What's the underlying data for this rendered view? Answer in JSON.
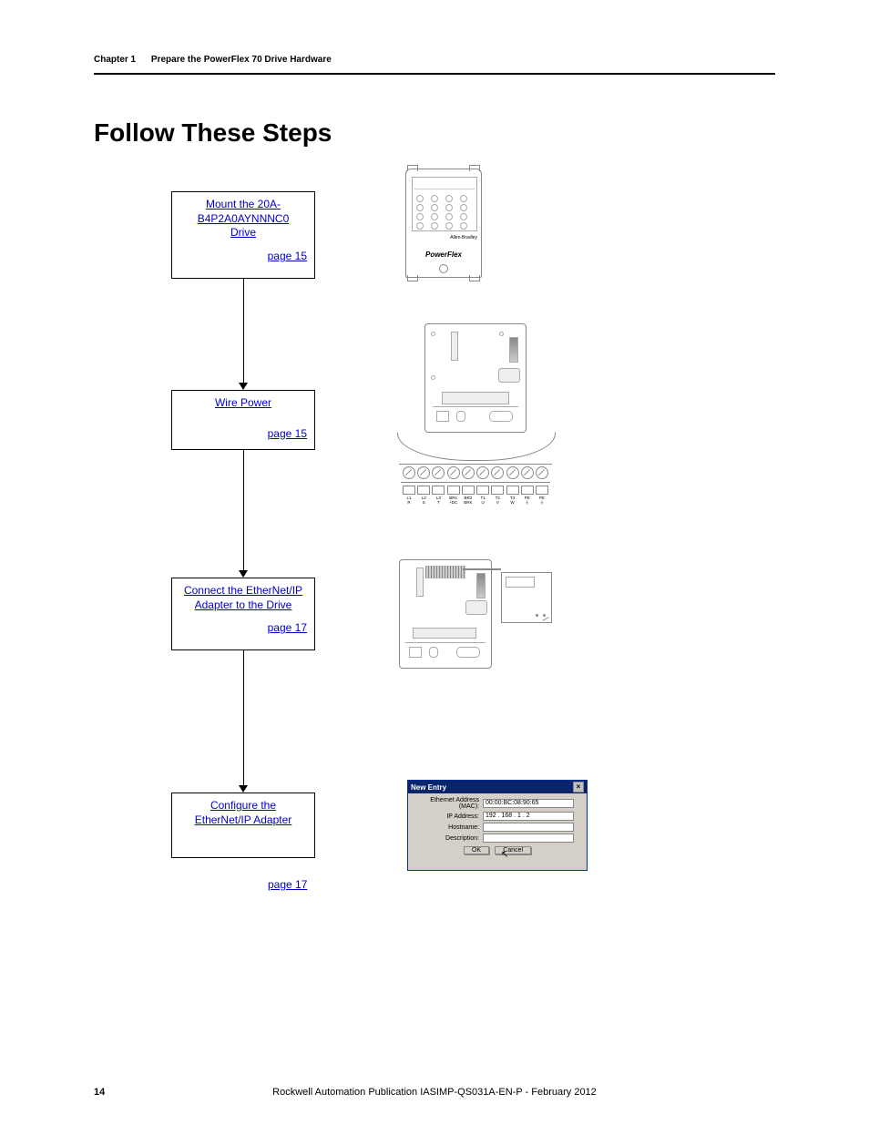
{
  "header": {
    "chapter": "Chapter 1",
    "subtitle": "Prepare the PowerFlex 70 Drive Hardware"
  },
  "title": "Follow These Steps",
  "flow": {
    "box1": {
      "link_l1": "Mount the 20A-",
      "link_l2": "B4P2A0AYNNNC0",
      "link_l3": "Drive",
      "page": "page 15"
    },
    "box2": {
      "link": "Wire Power",
      "page": "page 15"
    },
    "box3": {
      "link_l1": "Connect the EtherNet/IP",
      "link_l2": "Adapter to the Drive",
      "page": "page 17"
    },
    "box4": {
      "link_l1": "Configure the",
      "link_l2": "EtherNet/IP Adapter",
      "page": "page 17"
    }
  },
  "drive_fig": {
    "brand": "Allen-Bradley",
    "model": "PowerFlex"
  },
  "terminals": {
    "labels": [
      "L1\nR",
      "L2\nS",
      "L3\nT",
      "BR1\n+DC",
      "BR2\nBRK",
      "T1\nU",
      "T2\nV",
      "T3\nW",
      "PE\n⏚",
      "PE\n⏚"
    ]
  },
  "dialog": {
    "title": "New Entry",
    "rows": {
      "mac_label": "Ethernet Address (MAC):",
      "mac_value": "00:00:BC:08:90:65",
      "ip_label": "IP Address:",
      "ip_value": "192 . 168 .  1  .  2",
      "host_label": "Hostname:",
      "desc_label": "Description:"
    },
    "ok": "OK",
    "cancel": "Cancel"
  },
  "footer": {
    "page": "14",
    "pub": "Rockwell Automation Publication IASIMP-QS031A-EN-P - February 2012"
  },
  "colors": {
    "link": "#0000cc",
    "rule": "#000000",
    "dialog_title_bg": "#0a246a",
    "dialog_bg": "#d4d0c8"
  }
}
